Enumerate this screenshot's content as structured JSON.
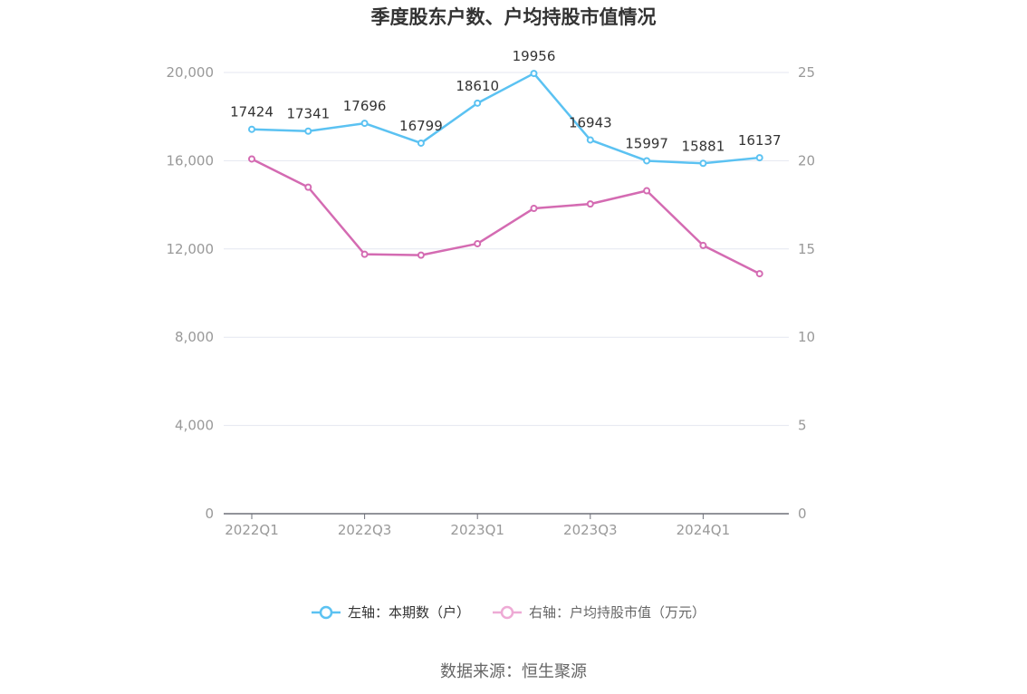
{
  "chart_data": {
    "type": "line",
    "title": "季度股东户数、户均持股市值情况",
    "categories": [
      "2022Q1",
      "2022Q2",
      "2022Q3",
      "2022Q4",
      "2023Q1",
      "2023Q2",
      "2023Q3",
      "2023Q4",
      "2024Q1",
      "2024Q2"
    ],
    "x_tick_labels": [
      "2022Q1",
      "2022Q3",
      "2023Q1",
      "2023Q3",
      "2024Q1"
    ],
    "left_axis": {
      "ylim": [
        0,
        20000
      ],
      "ticks": [
        0,
        4000,
        8000,
        12000,
        16000,
        20000
      ],
      "tick_labels": [
        "0",
        "4,000",
        "8,000",
        "12,000",
        "16,000",
        "20,000"
      ]
    },
    "right_axis": {
      "ylim": [
        0,
        25
      ],
      "ticks": [
        0,
        5,
        10,
        15,
        20,
        25
      ],
      "tick_labels": [
        "0",
        "5",
        "10",
        "15",
        "20",
        "25"
      ]
    },
    "grid": true,
    "legend_position": "bottom",
    "series": [
      {
        "name": "左轴：本期数（户）",
        "axis": "left",
        "color": "#5bc2f2",
        "values": [
          17424,
          17341,
          17696,
          16799,
          18610,
          19956,
          16943,
          15997,
          15881,
          16137
        ],
        "show_labels": true
      },
      {
        "name": "右轴：户均持股市值（万元）",
        "axis": "right",
        "color": "#d46bb2",
        "legend_color": "#eeaad5",
        "values": [
          20.1,
          18.5,
          14.7,
          14.65,
          15.3,
          17.3,
          17.55,
          18.3,
          15.2,
          13.6
        ],
        "show_labels": false
      }
    ]
  },
  "source_text": "数据来源：恒生聚源"
}
